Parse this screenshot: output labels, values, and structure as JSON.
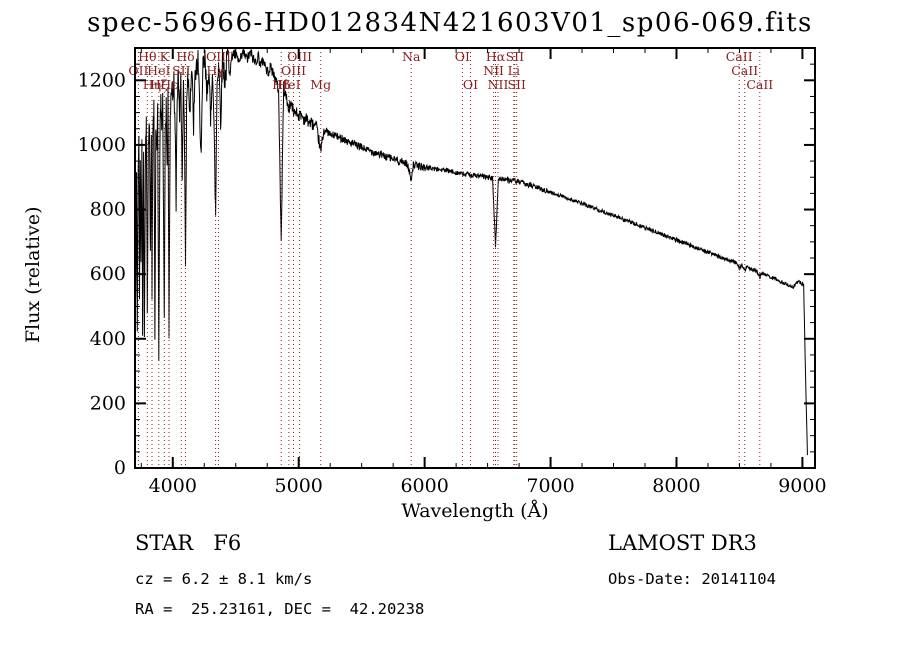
{
  "title": "spec-56966-HD012834N421603V01_sp06-069.fits",
  "footer": {
    "class_label": "STAR   F6",
    "survey": "LAMOST DR3",
    "cz": "cz = 6.2 ± 8.1 km/s",
    "obs_date": "Obs-Date: 20141104",
    "coords": "RA =  25.23161, DEC =  42.20238"
  },
  "chart_data": {
    "type": "line",
    "title": "spec-56966-HD012834N421603V01_sp06-069.fits",
    "xlabel": "Wavelength (Å)",
    "ylabel": "Flux (relative)",
    "xlim": [
      3700,
      9100
    ],
    "ylim": [
      0,
      1300
    ],
    "x_ticks": [
      4000,
      5000,
      6000,
      7000,
      8000,
      9000
    ],
    "y_ticks": [
      0,
      200,
      400,
      600,
      800,
      1000,
      1200
    ],
    "x_minor_step": 250,
    "y_minor_step": 50,
    "grid": false,
    "legend": "none",
    "line_color": "#000000",
    "marker_color": "#8b2020",
    "noise": {
      "seed": 42,
      "segments": [
        [
          3700,
          4450,
          45
        ],
        [
          4450,
          5200,
          18
        ],
        [
          5200,
          6000,
          12
        ],
        [
          6000,
          7000,
          8
        ],
        [
          7000,
          9050,
          6
        ]
      ]
    },
    "spectral_lines": [
      {
        "label": "Hθ",
        "wavelength": 3798,
        "row": 0
      },
      {
        "label": "K",
        "wavelength": 3933,
        "row": 0
      },
      {
        "label": "Hδ",
        "wavelength": 4101,
        "row": 0
      },
      {
        "label": "OIII",
        "wavelength": 4363,
        "row": 0
      },
      {
        "label": "OIII",
        "wavelength": 5007,
        "row": 0
      },
      {
        "label": "Na",
        "wavelength": 5893,
        "row": 0
      },
      {
        "label": "OI",
        "wavelength": 6300,
        "row": 0
      },
      {
        "label": "Hα",
        "wavelength": 6563,
        "row": 0
      },
      {
        "label": "SII",
        "wavelength": 6716,
        "row": 0
      },
      {
        "label": "CaII",
        "wavelength": 8498,
        "row": 0
      },
      {
        "label": "OII",
        "wavelength": 3727,
        "row": 1
      },
      {
        "label": "HeI",
        "wavelength": 3889,
        "row": 1
      },
      {
        "label": "SII",
        "wavelength": 4068,
        "row": 1
      },
      {
        "label": "Hγ",
        "wavelength": 4340,
        "row": 1
      },
      {
        "label": "OIII",
        "wavelength": 4959,
        "row": 1
      },
      {
        "label": "NII",
        "wavelength": 6548,
        "row": 1
      },
      {
        "label": "Li",
        "wavelength": 6708,
        "row": 1
      },
      {
        "label": "CaII",
        "wavelength": 8542,
        "row": 1
      },
      {
        "label": "Hη",
        "wavelength": 3835,
        "row": 2
      },
      {
        "label": "Hζ",
        "wavelength": 3889,
        "row": 2
      },
      {
        "label": "Hε",
        "wavelength": 3970,
        "row": 2
      },
      {
        "label": "Hβ",
        "wavelength": 4861,
        "row": 2
      },
      {
        "label": "HeI",
        "wavelength": 4922,
        "row": 2
      },
      {
        "label": "Mg",
        "wavelength": 5175,
        "row": 2
      },
      {
        "label": "OI",
        "wavelength": 6364,
        "row": 2
      },
      {
        "label": "NII",
        "wavelength": 6583,
        "row": 2
      },
      {
        "label": "SII",
        "wavelength": 6731,
        "row": 2
      },
      {
        "label": "CaII",
        "wavelength": 8662,
        "row": 2
      }
    ],
    "spectrum": [
      [
        3705,
        520
      ],
      [
        3712,
        900
      ],
      [
        3718,
        420
      ],
      [
        3725,
        880
      ],
      [
        3731,
        1050
      ],
      [
        3736,
        500
      ],
      [
        3742,
        980
      ],
      [
        3748,
        620
      ],
      [
        3755,
        1020
      ],
      [
        3760,
        450
      ],
      [
        3768,
        1000
      ],
      [
        3775,
        380
      ],
      [
        3782,
        950
      ],
      [
        3790,
        1060
      ],
      [
        3798,
        520
      ],
      [
        3806,
        1000
      ],
      [
        3815,
        1080
      ],
      [
        3822,
        640
      ],
      [
        3830,
        1050
      ],
      [
        3835,
        560
      ],
      [
        3842,
        1020
      ],
      [
        3850,
        1100
      ],
      [
        3858,
        430
      ],
      [
        3865,
        1060
      ],
      [
        3872,
        980
      ],
      [
        3880,
        1090
      ],
      [
        3889,
        360
      ],
      [
        3898,
        1020
      ],
      [
        3905,
        1120
      ],
      [
        3912,
        1060
      ],
      [
        3920,
        1140
      ],
      [
        3926,
        800
      ],
      [
        3933,
        420
      ],
      [
        3940,
        1050
      ],
      [
        3948,
        1130
      ],
      [
        3955,
        900
      ],
      [
        3962,
        1150
      ],
      [
        3970,
        430
      ],
      [
        3980,
        1100
      ],
      [
        3990,
        1180
      ],
      [
        4000,
        1150
      ],
      [
        4010,
        1200
      ],
      [
        4020,
        1000
      ],
      [
        4026,
        820
      ],
      [
        4035,
        1170
      ],
      [
        4045,
        1220
      ],
      [
        4055,
        1100
      ],
      [
        4065,
        1190
      ],
      [
        4075,
        900
      ],
      [
        4085,
        1210
      ],
      [
        4095,
        950
      ],
      [
        4101,
        620
      ],
      [
        4110,
        1150
      ],
      [
        4120,
        1230
      ],
      [
        4135,
        1120
      ],
      [
        4150,
        1240
      ],
      [
        4165,
        1060
      ],
      [
        4180,
        1230
      ],
      [
        4200,
        1250
      ],
      [
        4215,
        1100
      ],
      [
        4226,
        960
      ],
      [
        4240,
        1240
      ],
      [
        4255,
        1260
      ],
      [
        4270,
        1150
      ],
      [
        4285,
        1250
      ],
      [
        4300,
        1060
      ],
      [
        4315,
        1260
      ],
      [
        4330,
        1000
      ],
      [
        4340,
        780
      ],
      [
        4352,
        1200
      ],
      [
        4365,
        1260
      ],
      [
        4380,
        1080
      ],
      [
        4395,
        1270
      ],
      [
        4415,
        1200
      ],
      [
        4435,
        1280
      ],
      [
        4455,
        1230
      ],
      [
        4475,
        1285
      ],
      [
        4500,
        1275
      ],
      [
        4530,
        1255
      ],
      [
        4560,
        1285
      ],
      [
        4590,
        1265
      ],
      [
        4620,
        1285
      ],
      [
        4650,
        1255
      ],
      [
        4680,
        1275
      ],
      [
        4700,
        1245
      ],
      [
        4720,
        1265
      ],
      [
        4750,
        1225
      ],
      [
        4780,
        1240
      ],
      [
        4810,
        1210
      ],
      [
        4840,
        1170
      ],
      [
        4861,
        700
      ],
      [
        4880,
        1180
      ],
      [
        4900,
        1150
      ],
      [
        4920,
        1110
      ],
      [
        4940,
        1130
      ],
      [
        4960,
        1100
      ],
      [
        4980,
        1105
      ],
      [
        5000,
        1090
      ],
      [
        5020,
        1095
      ],
      [
        5040,
        1080
      ],
      [
        5060,
        1082
      ],
      [
        5080,
        1070
      ],
      [
        5100,
        1068
      ],
      [
        5120,
        1060
      ],
      [
        5140,
        1055
      ],
      [
        5167,
        1000
      ],
      [
        5175,
        975
      ],
      [
        5185,
        1010
      ],
      [
        5200,
        1045
      ],
      [
        5230,
        1040
      ],
      [
        5260,
        1028
      ],
      [
        5290,
        1032
      ],
      [
        5320,
        1020
      ],
      [
        5350,
        1022
      ],
      [
        5380,
        1012
      ],
      [
        5420,
        1005
      ],
      [
        5460,
        998
      ],
      [
        5500,
        992
      ],
      [
        5540,
        985
      ],
      [
        5580,
        980
      ],
      [
        5620,
        975
      ],
      [
        5660,
        968
      ],
      [
        5700,
        962
      ],
      [
        5740,
        958
      ],
      [
        5780,
        952
      ],
      [
        5820,
        948
      ],
      [
        5860,
        942
      ],
      [
        5893,
        895
      ],
      [
        5910,
        938
      ],
      [
        5950,
        935
      ],
      [
        6000,
        930
      ],
      [
        6050,
        928
      ],
      [
        6100,
        925
      ],
      [
        6150,
        922
      ],
      [
        6200,
        918
      ],
      [
        6250,
        915
      ],
      [
        6300,
        910
      ],
      [
        6350,
        908
      ],
      [
        6400,
        905
      ],
      [
        6450,
        903
      ],
      [
        6500,
        900
      ],
      [
        6540,
        896
      ],
      [
        6563,
        685
      ],
      [
        6585,
        893
      ],
      [
        6620,
        896
      ],
      [
        6660,
        892
      ],
      [
        6700,
        890
      ],
      [
        6740,
        886
      ],
      [
        6780,
        882
      ],
      [
        6830,
        876
      ],
      [
        6880,
        870
      ],
      [
        6930,
        863
      ],
      [
        6980,
        856
      ],
      [
        7030,
        849
      ],
      [
        7080,
        843
      ],
      [
        7130,
        836
      ],
      [
        7180,
        828
      ],
      [
        7230,
        821
      ],
      [
        7280,
        814
      ],
      [
        7330,
        807
      ],
      [
        7380,
        799
      ],
      [
        7430,
        792
      ],
      [
        7480,
        784
      ],
      [
        7530,
        777
      ],
      [
        7580,
        769
      ],
      [
        7630,
        762
      ],
      [
        7680,
        754
      ],
      [
        7730,
        747
      ],
      [
        7780,
        739
      ],
      [
        7830,
        732
      ],
      [
        7880,
        724
      ],
      [
        7930,
        717
      ],
      [
        7980,
        709
      ],
      [
        8030,
        701
      ],
      [
        8080,
        694
      ],
      [
        8130,
        686
      ],
      [
        8180,
        679
      ],
      [
        8230,
        671
      ],
      [
        8280,
        664
      ],
      [
        8330,
        656
      ],
      [
        8380,
        649
      ],
      [
        8430,
        641
      ],
      [
        8480,
        634
      ],
      [
        8498,
        618
      ],
      [
        8520,
        628
      ],
      [
        8542,
        612
      ],
      [
        8560,
        622
      ],
      [
        8600,
        615
      ],
      [
        8640,
        608
      ],
      [
        8662,
        592
      ],
      [
        8690,
        602
      ],
      [
        8730,
        595
      ],
      [
        8770,
        588
      ],
      [
        8810,
        580
      ],
      [
        8850,
        573
      ],
      [
        8890,
        566
      ],
      [
        8930,
        560
      ],
      [
        8960,
        576
      ],
      [
        8990,
        572
      ],
      [
        9010,
        568
      ],
      [
        9025,
        280
      ],
      [
        9040,
        40
      ]
    ]
  }
}
